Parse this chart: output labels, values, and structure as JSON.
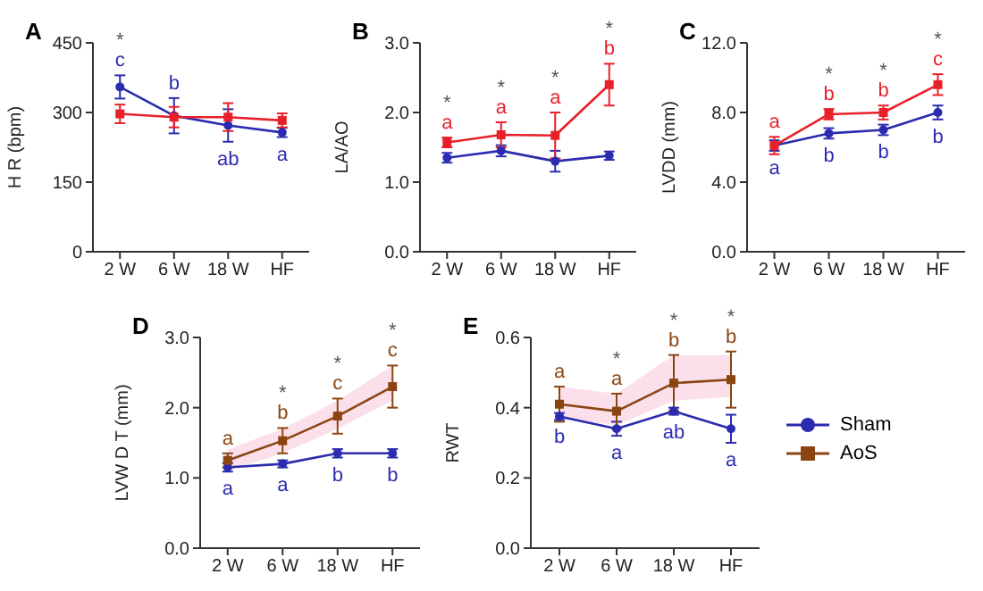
{
  "chart_data": [
    {
      "type": "line",
      "title": "A",
      "ylabel": "H R (bpm)",
      "categories": [
        "2 W",
        "6 W",
        "18 W",
        "HF"
      ],
      "ylim": [
        0,
        450
      ],
      "yticks": [
        0,
        150,
        300,
        450
      ],
      "series": [
        {
          "color": "#2b2bb0",
          "marker": "circle",
          "values": [
            355,
            293,
            272,
            257
          ],
          "errors": [
            25,
            38,
            35,
            10
          ],
          "value_labels": [
            "*\nc",
            "b",
            "ab",
            "a"
          ]
        },
        {
          "color": "#e8202a",
          "marker": "square",
          "values": [
            297,
            290,
            290,
            283
          ],
          "errors": [
            20,
            22,
            30,
            15
          ]
        }
      ]
    },
    {
      "type": "line",
      "title": "B",
      "ylabel": "LA/AO",
      "categories": [
        "2 W",
        "6 W",
        "18 W",
        "HF"
      ],
      "ylim": [
        0,
        3
      ],
      "yticks": [
        {
          "value": 0,
          "label": "0.0"
        },
        {
          "value": 1,
          "label": "1.0"
        },
        {
          "value": 2,
          "label": "2.0"
        },
        {
          "value": 3,
          "label": "3.0"
        }
      ],
      "series": [
        {
          "color": "#2b2bb0",
          "marker": "circle",
          "values": [
            1.35,
            1.45,
            1.3,
            1.38
          ],
          "errors": [
            0.07,
            0.08,
            0.15,
            0.06
          ]
        },
        {
          "color": "#e8202a",
          "marker": "square",
          "values": [
            1.57,
            1.68,
            1.67,
            2.4
          ],
          "errors": [
            0.07,
            0.18,
            0.33,
            0.3
          ],
          "value_labels": [
            "*\na",
            "*\na",
            "*\na",
            "*\nb"
          ]
        }
      ]
    },
    {
      "type": "line",
      "title": "C",
      "ylabel": "LVDD (mm)",
      "categories": [
        "2 W",
        "6 W",
        "18 W",
        "HF"
      ],
      "ylim": [
        0,
        12
      ],
      "yticks": [
        {
          "value": 0,
          "label": "0.0"
        },
        {
          "value": 4,
          "label": "4.0"
        },
        {
          "value": 8,
          "label": "8.0"
        },
        {
          "value": 12,
          "label": "12.0"
        }
      ],
      "series": [
        {
          "color": "#2b2bb0",
          "marker": "circle",
          "values": [
            6.1,
            6.8,
            7.0,
            8.0
          ],
          "errors": [
            0.3,
            0.3,
            0.3,
            0.4
          ],
          "value_labels": [
            "a",
            "b",
            "b",
            "b"
          ]
        },
        {
          "color": "#e8202a",
          "marker": "square",
          "values": [
            6.1,
            7.9,
            8.0,
            9.6
          ],
          "errors": [
            0.5,
            0.3,
            0.4,
            0.6
          ],
          "value_labels": [
            "a",
            "*\nb",
            "*\nb",
            "*\nc"
          ]
        }
      ]
    },
    {
      "type": "line",
      "title": "D",
      "ylabel": "LVW D T (mm)",
      "categories": [
        "2 W",
        "6 W",
        "18 W",
        "HF"
      ],
      "ylim": [
        0,
        3
      ],
      "yticks": [
        {
          "value": 0,
          "label": "0.0"
        },
        {
          "value": 1,
          "label": "1.0"
        },
        {
          "value": 2,
          "label": "2.0"
        },
        {
          "value": 3,
          "label": "3.0"
        }
      ],
      "series": [
        {
          "color": "#2b2bb0",
          "marker": "circle",
          "values": [
            1.15,
            1.2,
            1.35,
            1.35
          ],
          "errors": [
            0.06,
            0.05,
            0.06,
            0.06
          ],
          "value_labels": [
            "a",
            "a",
            "b",
            "b"
          ]
        },
        {
          "color": "#8b4513",
          "marker": "square",
          "values": [
            1.25,
            1.53,
            1.88,
            2.3
          ],
          "errors": [
            0.1,
            0.18,
            0.25,
            0.3
          ],
          "value_labels": [
            "a",
            "*\nb",
            "*\nc",
            "*\nc"
          ],
          "lower": [
            1.1,
            1.35,
            1.7,
            2.1
          ],
          "upper": [
            1.4,
            1.7,
            2.1,
            2.6
          ]
        }
      ]
    },
    {
      "type": "line",
      "title": "E",
      "ylabel": "RWT",
      "categories": [
        "2 W",
        "6 W",
        "18 W",
        "HF"
      ],
      "ylim": [
        0,
        0.6
      ],
      "yticks": [
        {
          "value": 0,
          "label": "0.0"
        },
        {
          "value": 0.2,
          "label": "0.2"
        },
        {
          "value": 0.4,
          "label": "0.4"
        },
        {
          "value": 0.6,
          "label": "0.6"
        }
      ],
      "legend": "right",
      "series": [
        {
          "name": "Sham",
          "color": "#2b2bb0",
          "marker": "circle",
          "values": [
            0.375,
            0.34,
            0.39,
            0.34
          ],
          "errors": [
            0.01,
            0.02,
            0.01,
            0.04
          ],
          "value_labels": [
            "b",
            "a",
            "ab",
            "a"
          ]
        },
        {
          "name": "AoS",
          "color": "#8b4513",
          "marker": "square",
          "values": [
            0.41,
            0.39,
            0.47,
            0.48
          ],
          "errors": [
            0.05,
            0.05,
            0.08,
            0.08
          ],
          "value_labels": [
            "a",
            "*\na",
            "*\nb",
            "*\nb"
          ],
          "lower": [
            0.37,
            0.35,
            0.42,
            0.43
          ],
          "upper": [
            0.46,
            0.44,
            0.55,
            0.55
          ]
        }
      ]
    }
  ]
}
